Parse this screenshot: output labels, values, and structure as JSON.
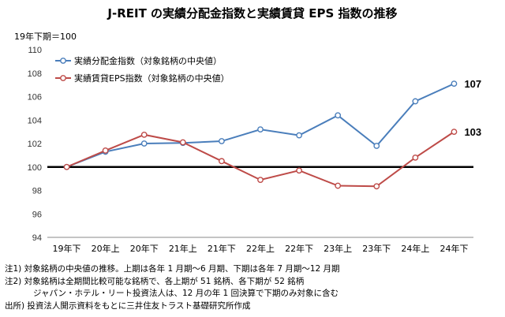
{
  "chart_data": {
    "type": "line",
    "title": "J-REIT の実績分配金指数と実績賃貸 EPS 指数の推移",
    "ylabel": "19年下期＝100",
    "ylim": [
      94,
      110
    ],
    "yticks": [
      "94",
      "96",
      "98",
      "100",
      "102",
      "104",
      "106",
      "108",
      "110"
    ],
    "categories": [
      "19年下",
      "20年上",
      "20年下",
      "21年上",
      "21年下",
      "22年上",
      "22年下",
      "23年上",
      "23年下",
      "24年上",
      "24年下"
    ],
    "baseline": 100,
    "series": [
      {
        "name": "実績分配金指数（対象銘柄の中央値）",
        "color": "#4a7ebb",
        "values": [
          100.0,
          101.3,
          102.0,
          102.05,
          102.2,
          103.2,
          102.7,
          104.4,
          101.8,
          105.6,
          107.1
        ],
        "end_label": "107"
      },
      {
        "name": "実績賃貸EPS指数（対象銘柄の中央値）",
        "color": "#be4b48",
        "values": [
          100.0,
          101.4,
          102.75,
          102.1,
          100.5,
          98.9,
          99.7,
          98.4,
          98.35,
          100.8,
          103.0
        ],
        "end_label": "103"
      }
    ]
  },
  "notes": {
    "note1": "注1) 対象銘柄の中央値の推移。上期は各年 1 月期～6 月期、下期は各年 7 月期～12 月期",
    "note2": "注2) 対象銘柄は全期間比較可能な銘柄で、各上期が 51 銘柄、各下期が 52 銘柄",
    "note2b": "ジャパン・ホテル・リート投資法人は、12 月の年 1 回決算で下期のみ対象に含む",
    "source": "出所) 投資法人開示資料をもとに三井住友トラスト基礎研究所作成"
  }
}
